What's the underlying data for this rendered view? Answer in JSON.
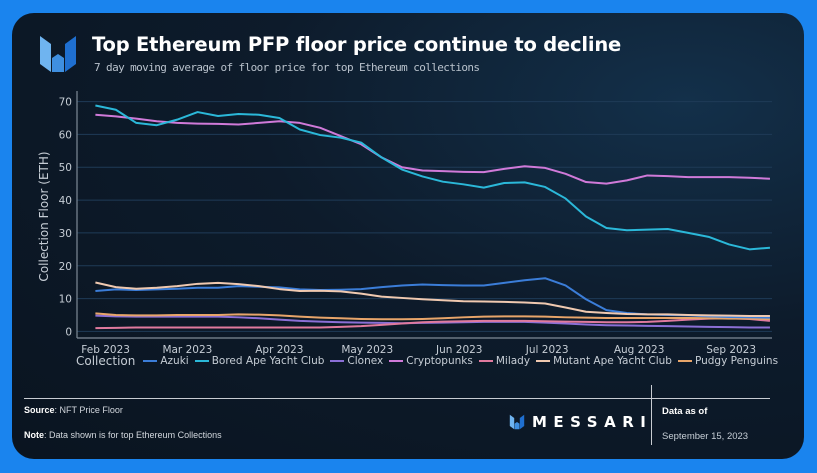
{
  "header": {
    "title": "Top Ethereum PFP floor price continue to decline",
    "subtitle": "7 day moving average of floor price for top Ethereum collections"
  },
  "footer": {
    "source_label": "Source",
    "source_value": ": NFT Price Floor",
    "note_label": "Note",
    "note_value": ": Data shown is for top Ethereum Collections",
    "brand": "MESSARI",
    "data_as_of_label": "Data as of",
    "data_as_of_date": "September 15, 2023"
  },
  "colors": {
    "background": "#1a84ee",
    "card": "#0d1b2b",
    "grid": "#1f3b57"
  },
  "chart_data": {
    "type": "line",
    "title": "Top Ethereum PFP floor price continue to decline",
    "subtitle": "7 day moving average of floor price for top Ethereum collections",
    "xlabel": "",
    "ylabel": "Collection Floor (ETH)",
    "ylim": [
      -2,
      72
    ],
    "yticks": [
      0,
      10,
      20,
      30,
      40,
      50,
      60,
      70
    ],
    "xticks": [
      "Feb 2023",
      "Mar 2023",
      "Apr 2023",
      "May 2023",
      "Jun 2023",
      "Jul 2023",
      "Aug 2023",
      "Sep 2023"
    ],
    "xtick_positions": [
      0.5,
      4.5,
      9,
      13.3,
      17.8,
      22.1,
      26.6,
      31.1
    ],
    "x_range": [
      -0.9,
      33.1
    ],
    "grid": true,
    "legend_title": "Collection",
    "legend_position": "bottom",
    "x": [
      "2023-01-24",
      "2023-01-31",
      "2023-02-07",
      "2023-02-14",
      "2023-02-21",
      "2023-02-28",
      "2023-03-07",
      "2023-03-14",
      "2023-03-21",
      "2023-03-28",
      "2023-04-04",
      "2023-04-11",
      "2023-04-18",
      "2023-04-25",
      "2023-05-02",
      "2023-05-09",
      "2023-05-16",
      "2023-05-23",
      "2023-05-30",
      "2023-06-06",
      "2023-06-13",
      "2023-06-20",
      "2023-06-27",
      "2023-07-04",
      "2023-07-11",
      "2023-07-18",
      "2023-07-25",
      "2023-08-01",
      "2023-08-08",
      "2023-08-15",
      "2023-08-22",
      "2023-08-29",
      "2023-09-05",
      "2023-09-12"
    ],
    "series": [
      {
        "name": "Azuki",
        "color": "#3b7dd8",
        "values": [
          12.3,
          12.8,
          12.6,
          12.8,
          13.0,
          13.3,
          13.3,
          13.8,
          13.6,
          13.4,
          12.8,
          12.6,
          12.7,
          12.9,
          13.5,
          14.0,
          14.3,
          14.1,
          14.0,
          14.0,
          14.8,
          15.6,
          16.2,
          14.0,
          9.8,
          6.5,
          5.6,
          5.2,
          5.0,
          4.9,
          4.6,
          4.4,
          4.3,
          4.2
        ]
      },
      {
        "name": "Bored Ape Yacht Club",
        "color": "#2bb8d9",
        "values": [
          68.8,
          67.5,
          63.5,
          62.8,
          64.5,
          66.8,
          65.6,
          66.2,
          66.0,
          65.0,
          61.5,
          59.8,
          59.0,
          57.5,
          53.0,
          49.3,
          47.2,
          45.6,
          44.8,
          43.8,
          45.2,
          45.4,
          44.0,
          40.5,
          35.0,
          31.5,
          30.8,
          31.0,
          31.2,
          30.0,
          28.8,
          26.5,
          25.0,
          25.5
        ]
      },
      {
        "name": "Clonex",
        "color": "#8b6fd6",
        "values": [
          4.8,
          4.6,
          4.5,
          4.5,
          4.5,
          4.5,
          4.5,
          4.3,
          4.0,
          3.6,
          3.2,
          3.0,
          2.8,
          2.7,
          2.6,
          2.5,
          2.6,
          2.7,
          2.8,
          2.9,
          2.9,
          2.9,
          2.7,
          2.4,
          2.1,
          1.9,
          1.8,
          1.7,
          1.6,
          1.5,
          1.4,
          1.3,
          1.2,
          1.2
        ]
      },
      {
        "name": "Cryptopunks",
        "color": "#d07ad9",
        "values": [
          66.0,
          65.5,
          64.8,
          64.0,
          63.5,
          63.3,
          63.2,
          63.0,
          63.5,
          64.0,
          63.5,
          62.0,
          59.5,
          57.0,
          53.0,
          50.0,
          49.0,
          48.8,
          48.6,
          48.5,
          49.5,
          50.3,
          49.8,
          48.0,
          45.5,
          45.0,
          46.0,
          47.5,
          47.3,
          47.0,
          47.0,
          47.0,
          46.8,
          46.5
        ]
      },
      {
        "name": "Milady",
        "color": "#e07a9e",
        "values": [
          1.0,
          1.1,
          1.2,
          1.2,
          1.2,
          1.2,
          1.2,
          1.2,
          1.2,
          1.2,
          1.2,
          1.2,
          1.4,
          1.6,
          2.0,
          2.4,
          2.8,
          3.0,
          3.1,
          3.2,
          3.2,
          3.2,
          3.1,
          3.0,
          2.9,
          2.8,
          2.8,
          2.9,
          3.2,
          3.6,
          3.9,
          4.0,
          3.8,
          3.2
        ]
      },
      {
        "name": "Mutant Ape Yacht Club",
        "color": "#f0c9b0",
        "values": [
          14.9,
          13.5,
          13.0,
          13.3,
          13.8,
          14.5,
          14.8,
          14.4,
          13.8,
          12.9,
          12.3,
          12.4,
          12.2,
          11.5,
          10.6,
          10.2,
          9.8,
          9.5,
          9.2,
          9.1,
          9.0,
          8.8,
          8.5,
          7.3,
          6.0,
          5.6,
          5.3,
          5.2,
          5.2,
          5.0,
          4.9,
          4.8,
          4.7,
          4.7
        ]
      },
      {
        "name": "Pudgy Penguins",
        "color": "#e8a56a",
        "values": [
          5.5,
          5.0,
          4.9,
          4.9,
          5.0,
          5.0,
          5.0,
          5.2,
          5.1,
          4.9,
          4.5,
          4.2,
          4.0,
          3.8,
          3.7,
          3.7,
          3.8,
          4.0,
          4.3,
          4.5,
          4.6,
          4.6,
          4.5,
          4.3,
          4.2,
          4.1,
          4.1,
          4.1,
          4.1,
          4.1,
          4.0,
          3.9,
          3.9,
          3.8
        ]
      }
    ]
  }
}
